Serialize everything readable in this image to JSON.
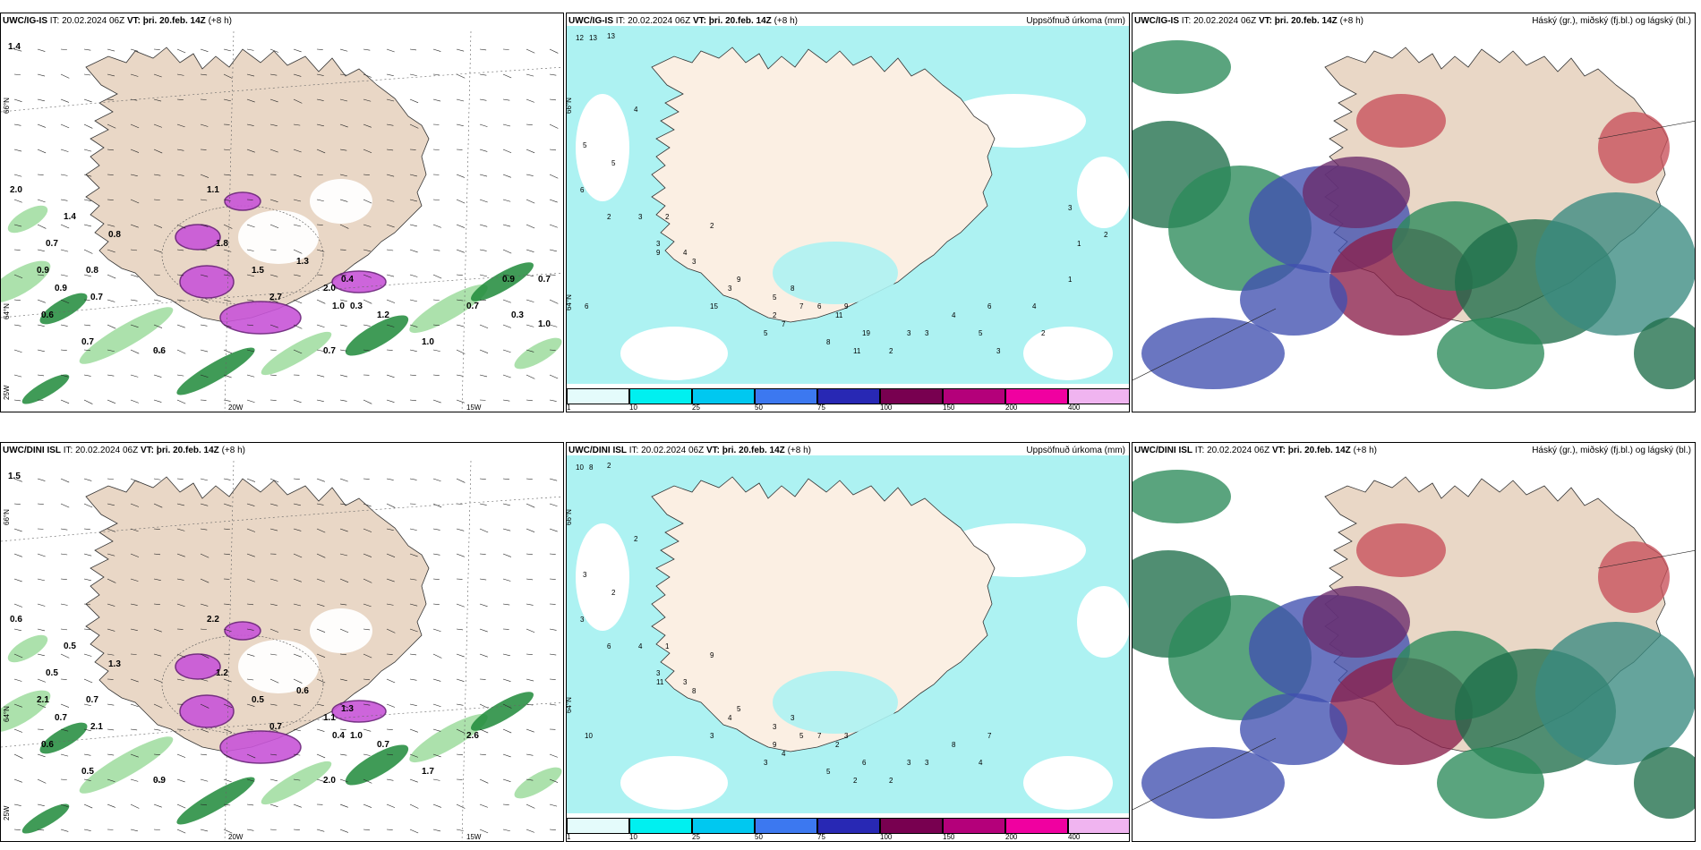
{
  "panels": [
    {
      "id": "p1",
      "model": "UWC/IG-IS",
      "it_label": "IT:",
      "it": "20.02.2024 06Z",
      "vt_label": "VT:",
      "vt": "þri. 20.feb. 14Z",
      "lead": "(+8 h)",
      "right": "",
      "kind": "wind"
    },
    {
      "id": "p2",
      "model": "UWC/IG-IS",
      "it_label": "IT:",
      "it": "20.02.2024 06Z",
      "vt_label": "VT:",
      "vt": "þri. 20.feb. 14Z",
      "lead": "(+8 h)",
      "right": "Uppsöfnuð úrkoma (mm)",
      "kind": "precip"
    },
    {
      "id": "p3",
      "model": "UWC/IG-IS",
      "it_label": "IT:",
      "it": "20.02.2024 06Z",
      "vt_label": "VT:",
      "vt": "þri. 20.feb. 14Z",
      "lead": "(+8 h)",
      "right": "Háský (gr.), miðský (fj.bl.) og lágský (bl.)",
      "kind": "cloud"
    },
    {
      "id": "p4",
      "model": "UWC/DINI ISL",
      "it_label": "IT:",
      "it": "20.02.2024 06Z",
      "vt_label": "VT:",
      "vt": "þri. 20.feb. 14Z",
      "lead": "(+8 h)",
      "right": "",
      "kind": "wind"
    },
    {
      "id": "p5",
      "model": "UWC/DINI ISL",
      "it_label": "IT:",
      "it": "20.02.2024 06Z",
      "vt_label": "VT:",
      "vt": "þri. 20.feb. 14Z",
      "lead": "(+8 h)",
      "right": "Uppsöfnuð úrkoma (mm)",
      "kind": "precip"
    },
    {
      "id": "p6",
      "model": "UWC/DINI ISL",
      "it_label": "IT:",
      "it": "20.02.2024 06Z",
      "vt_label": "VT:",
      "vt": "þri. 20.feb. 14Z",
      "lead": "(+8 h)",
      "right": "Háský (gr.), miðský (fj.bl.) og lágský (bl.)",
      "kind": "cloud"
    }
  ],
  "axis_labels": {
    "lat_66": "66°N",
    "lat_64": "64°N",
    "lon_20": "20W",
    "lon_15": "15W",
    "lat_25": "25W"
  },
  "colorbar": {
    "ticks": [
      "1",
      "10",
      "25",
      "50",
      "75",
      "100",
      "150",
      "200",
      "400"
    ],
    "colors": [
      "#e4fbfb",
      "#00f0f0",
      "#00c8f0",
      "#3c78f0",
      "#2828b4",
      "#780050",
      "#b4007a",
      "#f000a0",
      "#f0b4f0"
    ]
  },
  "wind_panel_values": {
    "p1": [
      "1.4",
      "2.0",
      "0.7",
      "0.9",
      "0.6",
      "1.4",
      "0.8",
      "0.7",
      "0.8",
      "0.9",
      "0.7",
      "0.6",
      "1.1",
      "1.8",
      "1.5",
      "2.7",
      "1.3",
      "2.0",
      "1.0",
      "0.4",
      "0.3",
      "0.7",
      "1.2",
      "1.0",
      "0.7",
      "0.9",
      "0.3",
      "1.0",
      "0.7"
    ],
    "p4": [
      "1.5",
      "0.6",
      "0.5",
      "2.1",
      "0.6",
      "0.5",
      "1.3",
      "2.1",
      "0.7",
      "0.7",
      "0.5",
      "0.9",
      "2.2",
      "1.2",
      "0.5",
      "0.7",
      "0.6",
      "1.1",
      "0.4",
      "1.3",
      "1.0",
      "2.0",
      "0.7",
      "1.7",
      "2.6"
    ]
  },
  "precip_panel_values": {
    "p2": [
      "12",
      "13",
      "13",
      "5",
      "4",
      "5",
      "6",
      "2",
      "3",
      "2",
      "3",
      "4",
      "6",
      "9",
      "2",
      "3",
      "3",
      "5",
      "6",
      "2",
      "9",
      "8",
      "7",
      "11",
      "15",
      "5",
      "7",
      "8",
      "9",
      "19",
      "11",
      "2",
      "3",
      "3",
      "4",
      "6",
      "5",
      "3",
      "4",
      "2",
      "1",
      "1",
      "2",
      "3"
    ],
    "p5": [
      "10",
      "8",
      "2",
      "3",
      "2",
      "2",
      "3",
      "6",
      "4",
      "1",
      "3",
      "3",
      "10",
      "11",
      "9",
      "8",
      "4",
      "3",
      "7",
      "9",
      "5",
      "3",
      "5",
      "2",
      "3",
      "3",
      "4",
      "5",
      "3",
      "6",
      "2",
      "2",
      "3",
      "3",
      "8",
      "7",
      "4"
    ]
  }
}
